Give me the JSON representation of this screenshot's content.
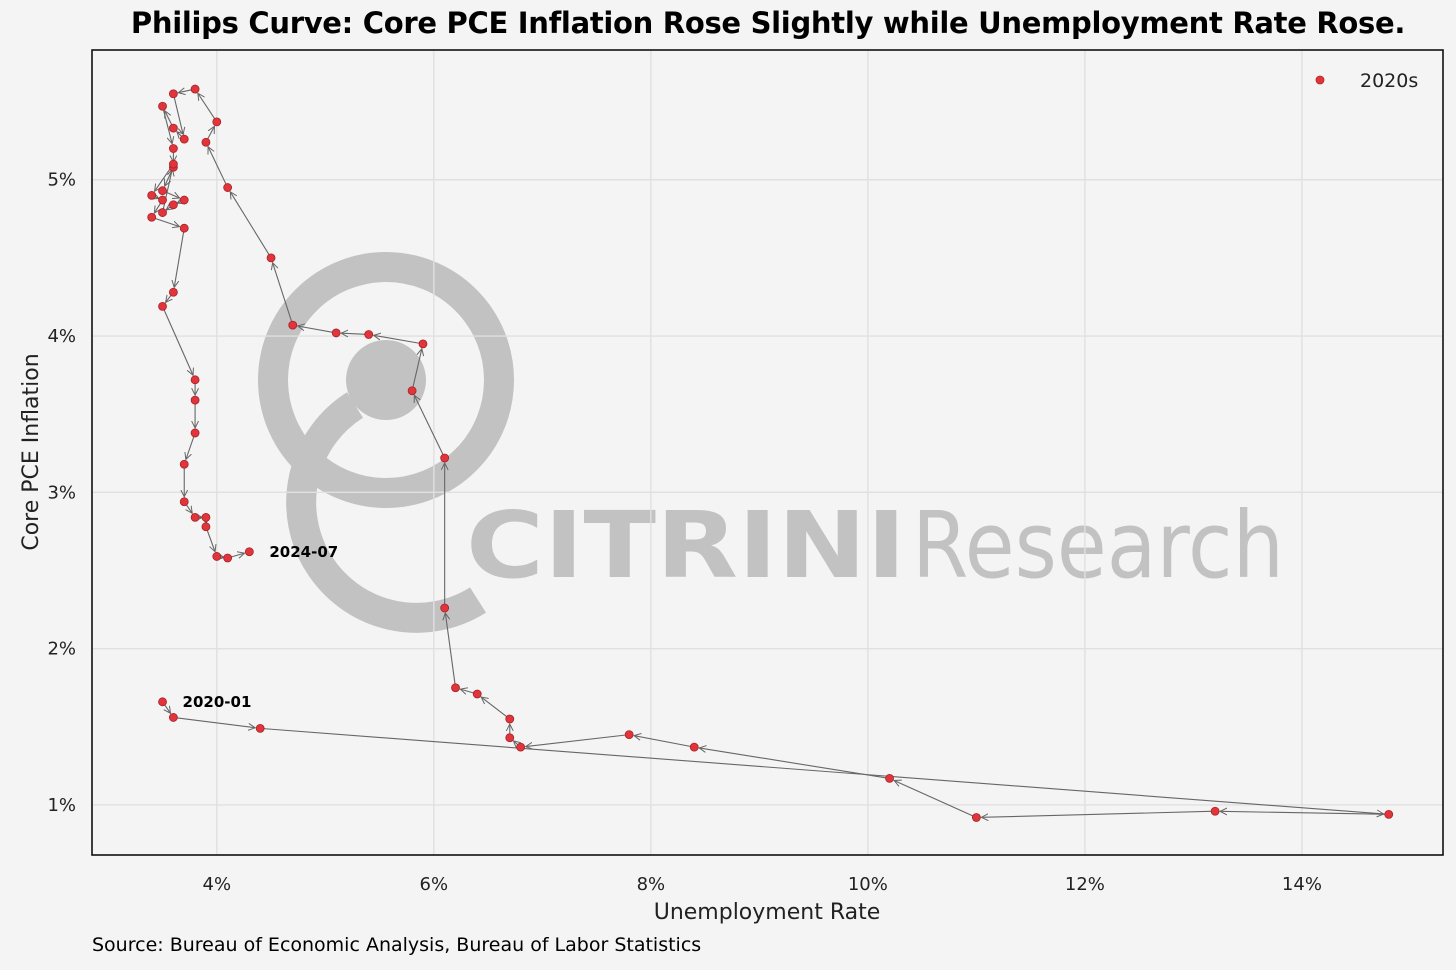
{
  "title": "Philips Curve: Core PCE Inflation Rose Slightly while Unemployment Rate Rose.",
  "source": "Source: Bureau of Economic Analysis, Bureau of Labor Statistics",
  "watermark": {
    "bold_part": "CITRINI",
    "light_part": "Research"
  },
  "colors": {
    "point": "#e0363b",
    "arrow": "#666666",
    "grid": "#e0e0e0",
    "background": "#f4f4f4",
    "watermark": "#c2c2c2"
  },
  "chart_data": {
    "type": "scatter",
    "xlabel": "Unemployment Rate",
    "ylabel": "Core PCE Inflation",
    "xlim": [
      2.85,
      15.3
    ],
    "ylim": [
      0.68,
      5.83
    ],
    "x_ticks": [
      4,
      6,
      8,
      10,
      12,
      14
    ],
    "x_tick_labels": [
      "4%",
      "6%",
      "8%",
      "10%",
      "12%",
      "14%"
    ],
    "y_ticks": [
      1,
      2,
      3,
      4,
      5
    ],
    "y_tick_labels": [
      "1%",
      "2%",
      "3%",
      "4%",
      "5%"
    ],
    "grid": true,
    "legend_position": "top-right",
    "connected_with_arrows": true,
    "series": [
      {
        "name": "2020s",
        "x": [
          3.5,
          3.6,
          4.4,
          14.8,
          13.2,
          11.0,
          10.2,
          8.4,
          7.8,
          6.8,
          6.7,
          6.7,
          6.4,
          6.2,
          6.1,
          6.1,
          5.8,
          5.9,
          5.4,
          5.1,
          4.7,
          4.5,
          4.1,
          3.9,
          4.0,
          3.8,
          3.6,
          3.7,
          3.6,
          3.5,
          3.6,
          3.6,
          3.5,
          3.7,
          3.6,
          3.5,
          3.6,
          3.4,
          3.5,
          3.4,
          3.7,
          3.6,
          3.5,
          3.8,
          3.8,
          3.8,
          3.7,
          3.7,
          3.8,
          3.9,
          3.9,
          4.0,
          4.1,
          4.3
        ],
        "y": [
          1.66,
          1.56,
          1.49,
          0.94,
          0.96,
          0.92,
          1.17,
          1.37,
          1.45,
          1.37,
          1.43,
          1.55,
          1.71,
          1.75,
          2.26,
          3.22,
          3.65,
          3.95,
          4.01,
          4.02,
          4.07,
          4.5,
          4.95,
          5.24,
          5.37,
          5.58,
          5.55,
          5.26,
          5.33,
          5.47,
          5.2,
          5.08,
          4.93,
          4.87,
          4.84,
          4.79,
          5.1,
          4.9,
          4.87,
          4.76,
          4.69,
          4.28,
          4.19,
          3.72,
          3.59,
          3.38,
          3.18,
          2.94,
          2.84,
          2.84,
          2.78,
          2.59,
          2.58,
          2.62
        ]
      }
    ],
    "annotations": [
      {
        "text": "2020-01",
        "x": 3.5,
        "y": 1.66
      },
      {
        "text": "2024-07",
        "x": 4.3,
        "y": 2.62
      }
    ]
  }
}
